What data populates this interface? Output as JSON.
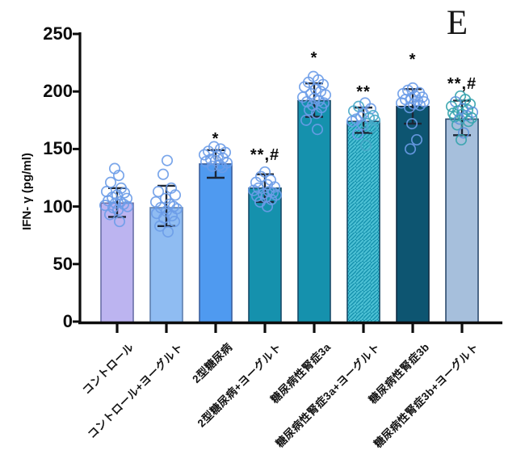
{
  "panel_label": "E",
  "chart_data": {
    "type": "bar",
    "title": "",
    "xlabel": "",
    "ylabel": "IFN- γ (pg/ml)",
    "ylim": [
      0,
      250
    ],
    "yticks": [
      0,
      50,
      100,
      150,
      200,
      250
    ],
    "grid": false,
    "legend": "none",
    "axis_color": "#0d0d0d",
    "error_bar_color": "#1c2636",
    "categories": [
      "コントロール",
      "コントロール+ヨーグルト",
      "2型糖尿病",
      "2型糖尿病+ヨーグルト",
      "糖尿病性腎症3a",
      "糖尿病性腎症3a+ヨーグルト",
      "糖尿病性腎症3b",
      "糖尿病性腎症3b+ヨーグルト"
    ],
    "bars": [
      {
        "label": "コントロール",
        "value": 103,
        "error_low": 91,
        "error_high": 116,
        "annotation": "",
        "annotation_y": 0,
        "fill": "#bcb4f0",
        "border": "#6a6fa8",
        "hatch": false,
        "point_colors": [
          "#6b9ce8"
        ],
        "points": [
          [
            -3,
            133
          ],
          [
            2,
            127
          ],
          [
            -8,
            121
          ],
          [
            5,
            116
          ],
          [
            -13,
            113
          ],
          [
            9,
            112
          ],
          [
            0,
            110
          ],
          [
            -6,
            108
          ],
          [
            12,
            107
          ],
          [
            -11,
            105
          ],
          [
            4,
            104
          ],
          [
            -2,
            103
          ],
          [
            8,
            102
          ],
          [
            -15,
            101
          ],
          [
            13,
            100
          ],
          [
            -5,
            99
          ],
          [
            1,
            97
          ],
          [
            -9,
            93
          ],
          [
            3,
            87
          ]
        ]
      },
      {
        "label": "コントロール+ヨーグルト",
        "value": 99,
        "error_low": 83,
        "error_high": 118,
        "annotation": "",
        "annotation_y": 0,
        "fill": "#8fbcf2",
        "border": "#5f7fae",
        "hatch": false,
        "point_colors": [
          "#6b9ce8"
        ],
        "points": [
          [
            1,
            140
          ],
          [
            -4,
            128
          ],
          [
            6,
            116
          ],
          [
            -10,
            113
          ],
          [
            11,
            110
          ],
          [
            -1,
            107
          ],
          [
            -13,
            104
          ],
          [
            4,
            102
          ],
          [
            9,
            100
          ],
          [
            -7,
            99
          ],
          [
            13,
            98
          ],
          [
            0,
            96
          ],
          [
            -12,
            94
          ],
          [
            7,
            92
          ],
          [
            -3,
            90
          ],
          [
            10,
            87
          ],
          [
            -8,
            83
          ],
          [
            2,
            78
          ]
        ]
      },
      {
        "label": "2型糖尿病",
        "value": 137,
        "error_low": 125,
        "error_high": 149,
        "annotation": "*",
        "annotation_y": 158,
        "fill": "#4f9af0",
        "border": "#3a5e9e",
        "hatch": false,
        "point_colors": [
          "#6b9ce8"
        ],
        "points": [
          [
            -2,
            152
          ],
          [
            6,
            150
          ],
          [
            -9,
            148
          ],
          [
            12,
            147
          ],
          [
            -14,
            145
          ],
          [
            3,
            144
          ],
          [
            9,
            142
          ],
          [
            -6,
            141
          ],
          [
            0,
            140
          ],
          [
            -12,
            139
          ],
          [
            14,
            138
          ],
          [
            5,
            136
          ],
          [
            -4,
            135
          ],
          [
            8,
            134
          ]
        ]
      },
      {
        "label": "2型糖尿病+ヨーグルト",
        "value": 116,
        "error_low": 104,
        "error_high": 128,
        "annotation": "**,#",
        "annotation_y": 144,
        "fill": "#1591ad",
        "border": "#174a68",
        "hatch": false,
        "point_colors": [
          "#6b9ce8"
        ],
        "points": [
          [
            0,
            130
          ],
          [
            -5,
            126
          ],
          [
            7,
            123
          ],
          [
            -11,
            121
          ],
          [
            3,
            119
          ],
          [
            12,
            117
          ],
          [
            -8,
            116
          ],
          [
            -14,
            114
          ],
          [
            5,
            113
          ],
          [
            10,
            112
          ],
          [
            -2,
            111
          ],
          [
            14,
            110
          ],
          [
            -10,
            109
          ],
          [
            1,
            108
          ],
          [
            8,
            106
          ],
          [
            -6,
            104
          ],
          [
            3,
            100
          ]
        ]
      },
      {
        "label": "糖尿病性腎症3a",
        "value": 192,
        "error_low": 178,
        "error_high": 207,
        "annotation": "*",
        "annotation_y": 228,
        "fill": "#1591ad",
        "border": "#174a68",
        "hatch": false,
        "point_colors": [
          "#6b9ce8"
        ],
        "points": [
          [
            -1,
            213
          ],
          [
            5,
            210
          ],
          [
            -7,
            208
          ],
          [
            11,
            206
          ],
          [
            -12,
            204
          ],
          [
            2,
            202
          ],
          [
            8,
            200
          ],
          [
            -4,
            198
          ],
          [
            14,
            197
          ],
          [
            -14,
            195
          ],
          [
            0,
            194
          ],
          [
            6,
            192
          ],
          [
            -9,
            191
          ],
          [
            12,
            190
          ],
          [
            -2,
            188
          ],
          [
            9,
            186
          ],
          [
            -6,
            184
          ],
          [
            3,
            181
          ],
          [
            -10,
            175
          ],
          [
            4,
            167
          ]
        ]
      },
      {
        "label": "糖尿病性腎症3a+ヨーグルト",
        "value": 174,
        "error_low": 164,
        "error_high": 186,
        "annotation": "**",
        "annotation_y": 199,
        "fill": "#1591ad",
        "border": "#174a68",
        "hatch": true,
        "hatch_color": "#4cc0d4",
        "point_colors": [
          "#6b9ce8",
          "#48a8c8"
        ],
        "points": [
          [
            2,
            190
          ],
          [
            -6,
            187
          ],
          [
            9,
            185
          ],
          [
            -12,
            183
          ],
          [
            0,
            181
          ],
          [
            12,
            179
          ],
          [
            -3,
            178
          ],
          [
            7,
            177
          ],
          [
            -9,
            176
          ],
          [
            14,
            175
          ],
          [
            -14,
            174
          ],
          [
            4,
            172
          ],
          [
            -1,
            171
          ],
          [
            10,
            169
          ],
          [
            -7,
            163
          ],
          [
            3,
            153
          ]
        ]
      },
      {
        "label": "糖尿病性腎症3b",
        "value": 187,
        "error_low": 172,
        "error_high": 202,
        "annotation": "*",
        "annotation_y": 227,
        "fill": "#0d5571",
        "border": "#102c44",
        "hatch": false,
        "point_colors": [
          "#6b9ce8"
        ],
        "points": [
          [
            0,
            203
          ],
          [
            -6,
            201
          ],
          [
            8,
            199
          ],
          [
            -12,
            198
          ],
          [
            3,
            196
          ],
          [
            12,
            195
          ],
          [
            -2,
            194
          ],
          [
            -9,
            193
          ],
          [
            6,
            192
          ],
          [
            14,
            191
          ],
          [
            -14,
            190
          ],
          [
            1,
            189
          ],
          [
            9,
            188
          ],
          [
            -4,
            186
          ],
          [
            -1,
            172
          ],
          [
            5,
            158
          ],
          [
            -3,
            150
          ]
        ]
      },
      {
        "label": "糖尿病性腎症3b+ヨーグルト",
        "value": 176,
        "error_low": 162,
        "error_high": 192,
        "annotation": "**,#",
        "annotation_y": 206,
        "fill": "#a6bfdc",
        "border": "#2c4a6e",
        "hatch": false,
        "point_colors": [
          "#35a3ad",
          "#35a3ad",
          "#5e93dd"
        ],
        "points": [
          [
            -2,
            196
          ],
          [
            4,
            193
          ],
          [
            -8,
            191
          ],
          [
            10,
            189
          ],
          [
            -13,
            187
          ],
          [
            1,
            185
          ],
          [
            7,
            184
          ],
          [
            -5,
            183
          ],
          [
            13,
            182
          ],
          [
            -11,
            181
          ],
          [
            0,
            180
          ],
          [
            6,
            179
          ],
          [
            -9,
            178
          ],
          [
            12,
            177
          ],
          [
            -3,
            176
          ],
          [
            8,
            174
          ],
          [
            -6,
            171
          ],
          [
            2,
            164
          ],
          [
            -1,
            158
          ]
        ]
      }
    ]
  }
}
